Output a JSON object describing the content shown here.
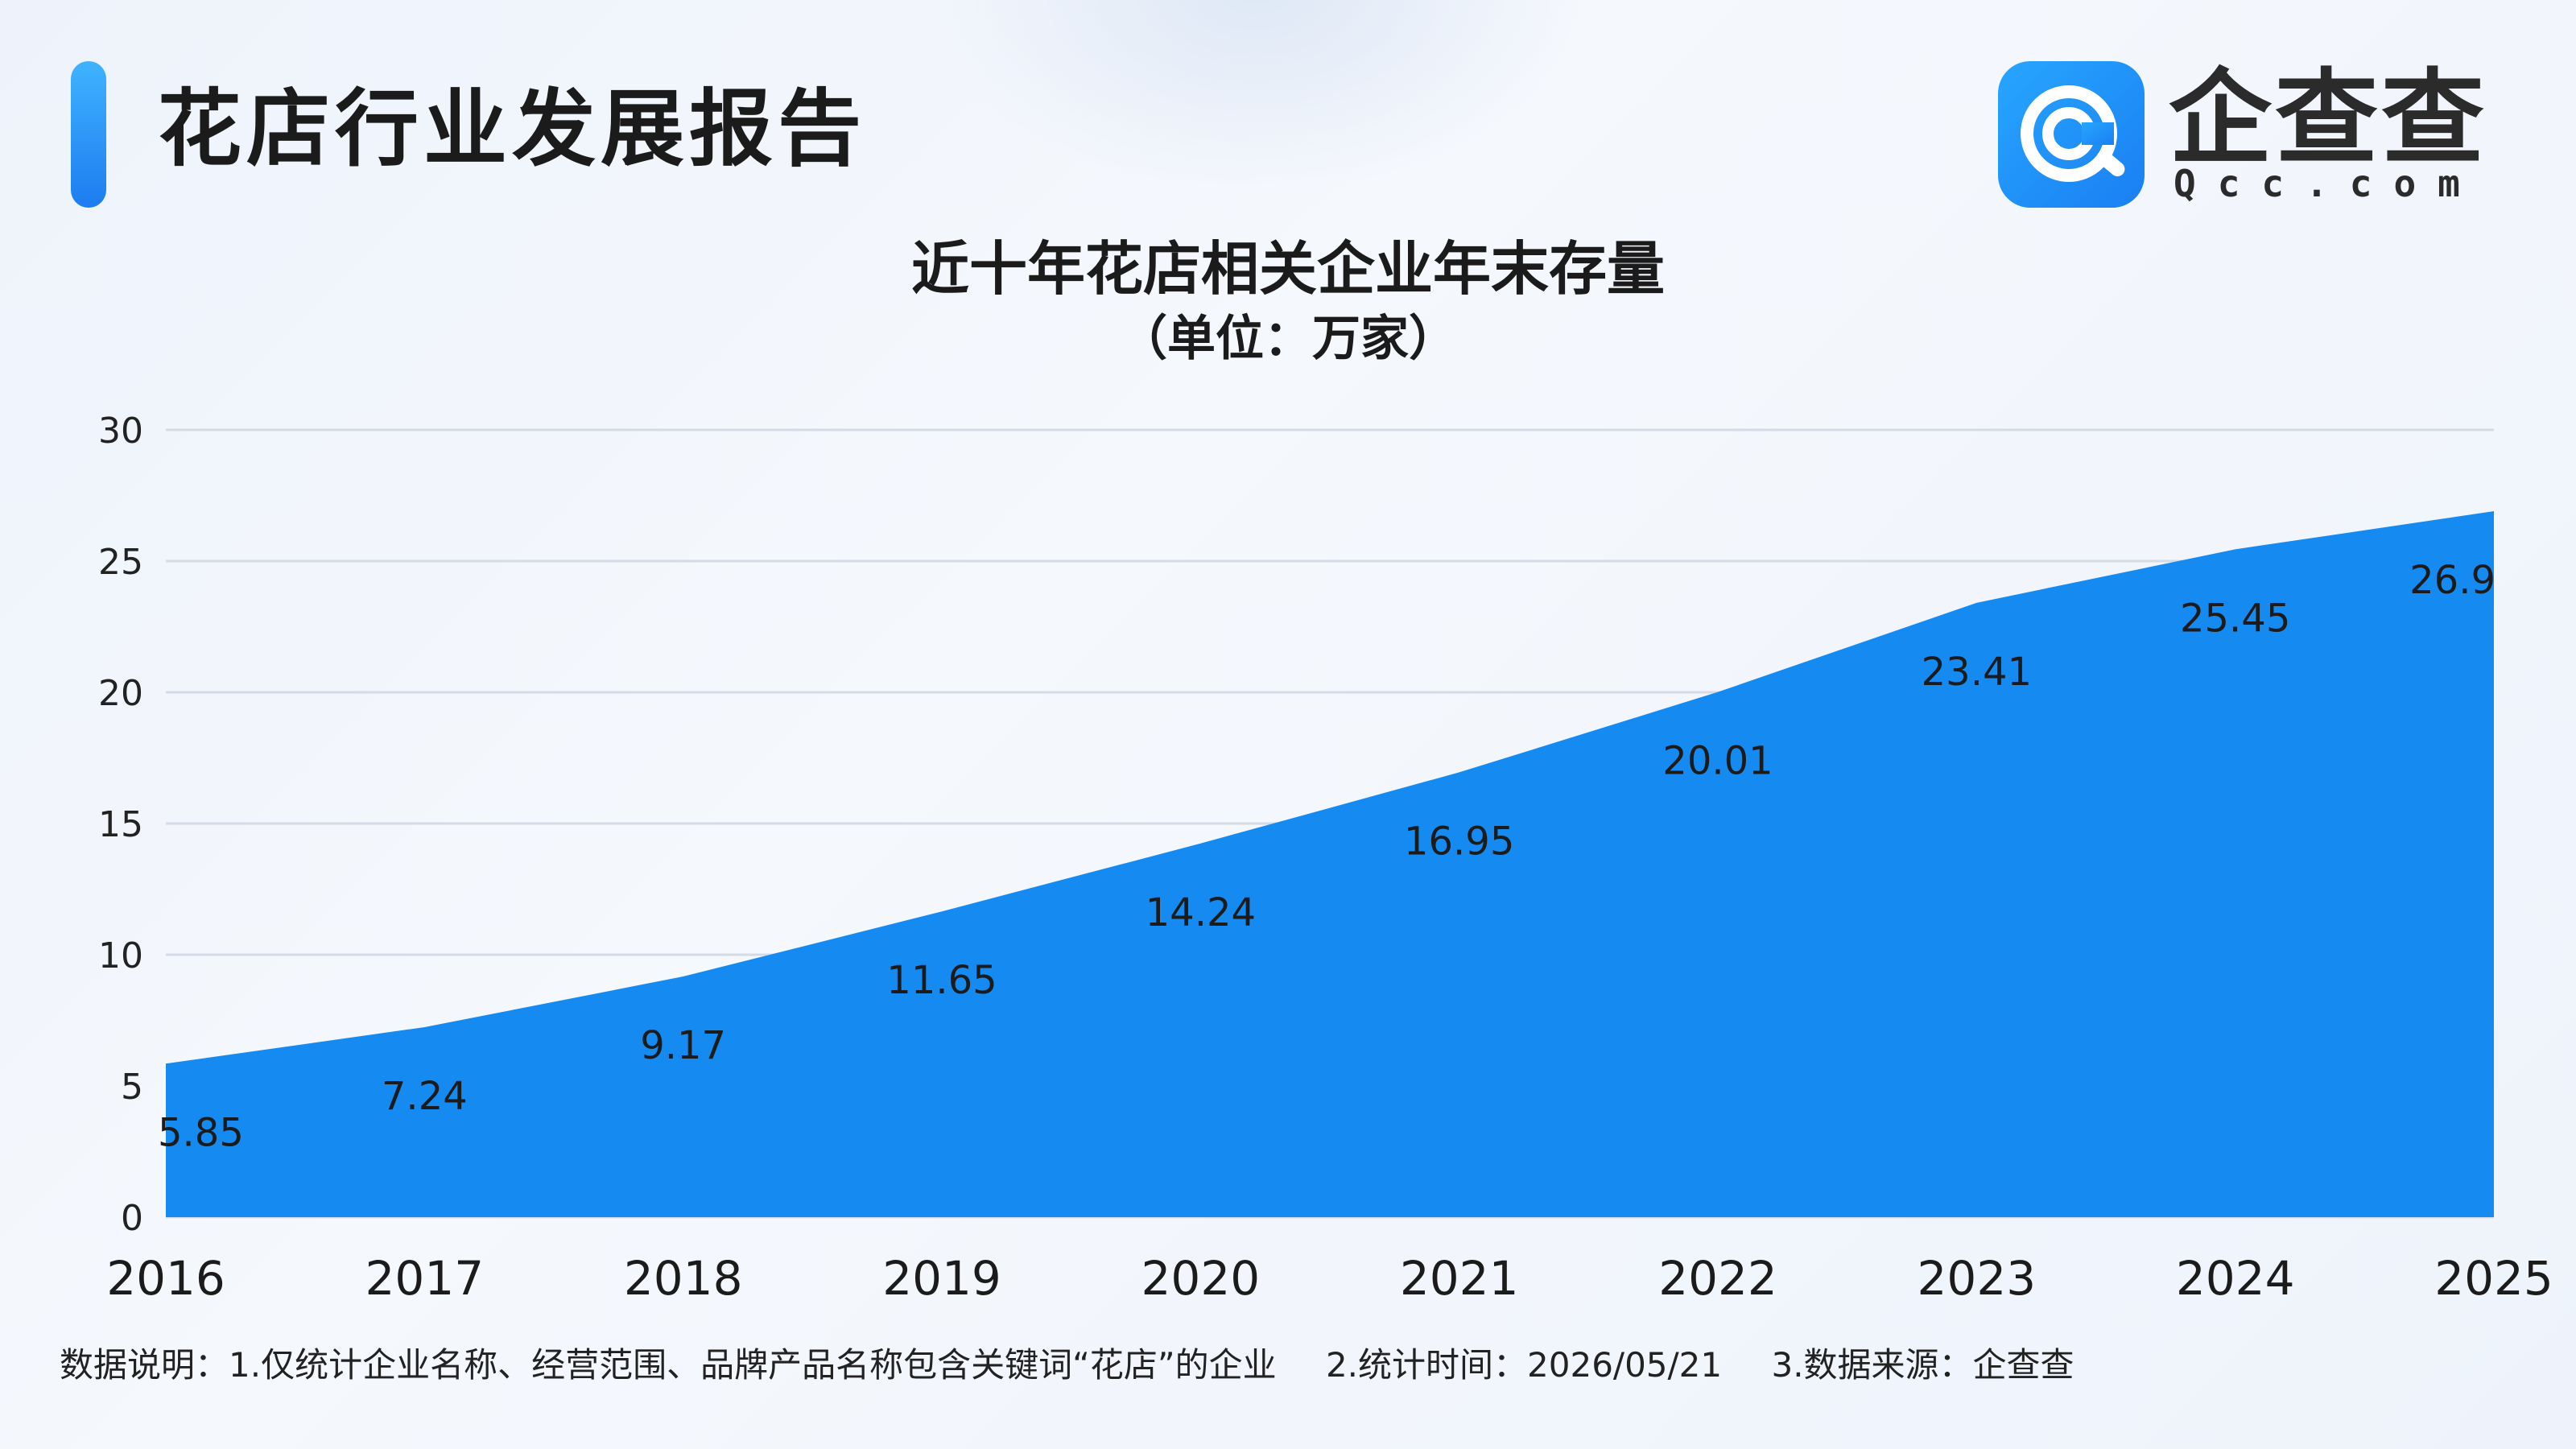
{
  "header": {
    "title": "花店行业发展报告",
    "logo_text": "企查查",
    "logo_domain": "Qcc.com"
  },
  "colors": {
    "accent": "#1d7cf0",
    "area_fill": "#158af0",
    "grid": "#d5dbe6"
  },
  "chart_data": {
    "type": "area",
    "title": "近十年花店相关企业年末存量",
    "subtitle": "（单位：万家）",
    "categories": [
      "2016",
      "2017",
      "2018",
      "2019",
      "2020",
      "2021",
      "2022",
      "2023",
      "2024",
      "2025"
    ],
    "values": [
      5.85,
      7.24,
      9.17,
      11.65,
      14.24,
      16.95,
      20.01,
      23.41,
      25.45,
      26.9
    ],
    "value_labels": [
      "5.85",
      "7.24",
      "9.17",
      "11.65",
      "14.24",
      "16.95",
      "20.01",
      "23.41",
      "25.45",
      "26.9"
    ],
    "y_ticks": [
      "0",
      "5",
      "10",
      "15",
      "20",
      "25",
      "30"
    ],
    "ylim": [
      0,
      30
    ],
    "grid": true,
    "legend": "none"
  },
  "footer": {
    "note1": "数据说明：1.仅统计企业名称、经营范围、品牌产品名称包含关键词“花店”的企业",
    "note2": "2.统计时间：2026/05/21",
    "note3": "3.数据来源：企查查"
  }
}
